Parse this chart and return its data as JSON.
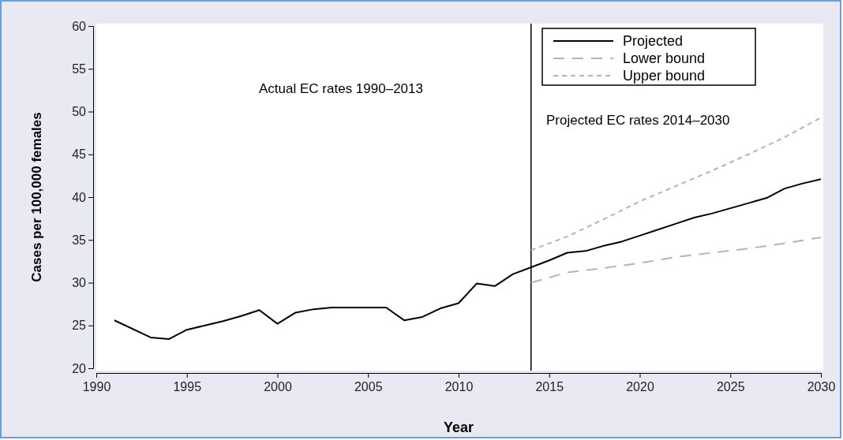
{
  "chart_data": {
    "type": "line",
    "xlabel": "Year",
    "ylabel": "Cases per 100,000 females",
    "xlim": [
      1990,
      2030
    ],
    "xticks": [
      1990,
      1995,
      2000,
      2005,
      2010,
      2015,
      2020,
      2025,
      2030
    ],
    "ylim": [
      20,
      60
    ],
    "yticks": [
      20,
      25,
      30,
      35,
      40,
      45,
      50,
      55,
      60
    ],
    "grid": false,
    "legend": "top right",
    "marker": "none",
    "ref_lines": [
      {
        "axis": "x",
        "value": 2014,
        "color": "#000000"
      }
    ],
    "annotations": [
      "Actual EC rates 1990–2013",
      "Projected EC rates 2014–2030"
    ],
    "series": [
      {
        "name": "Projected",
        "color": "#000000",
        "line_style": "solid",
        "x": [
          1991,
          1993,
          1994,
          1995,
          1996,
          1997,
          1998,
          1999,
          2000,
          2001,
          2002,
          2003,
          2004,
          2005,
          2006,
          2007,
          2008,
          2009,
          2010,
          2011,
          2012,
          2013,
          2014,
          2015,
          2016,
          2017,
          2018,
          2019,
          2020,
          2021,
          2022,
          2023,
          2024,
          2025,
          2026,
          2027,
          2028,
          2029,
          2030
        ],
        "values": [
          25.6,
          23.6,
          23.4,
          24.5,
          25.0,
          25.5,
          26.1,
          26.8,
          25.2,
          26.5,
          26.9,
          27.1,
          27.1,
          27.1,
          27.1,
          25.6,
          26.0,
          27.0,
          27.6,
          29.9,
          29.6,
          31.0,
          31.8,
          32.6,
          33.5,
          33.7,
          34.3,
          34.8,
          35.5,
          36.2,
          36.9,
          37.6,
          38.1,
          38.7,
          39.3,
          39.9,
          41.0,
          41.6,
          42.1
        ]
      },
      {
        "name": "Lower bound",
        "color": "#b4b4b4",
        "line_style": "dashed",
        "x": [
          2014,
          2016,
          2018,
          2020,
          2022,
          2024,
          2026,
          2028,
          2030
        ],
        "values": [
          30.0,
          31.2,
          31.7,
          32.3,
          33.0,
          33.5,
          34.0,
          34.6,
          35.3
        ]
      },
      {
        "name": "Upper bound",
        "color": "#b4b4b4",
        "line_style": "dotted",
        "x": [
          2014,
          2016,
          2018,
          2020,
          2022,
          2024,
          2026,
          2028,
          2030
        ],
        "values": [
          33.8,
          35.4,
          37.4,
          39.5,
          41.3,
          43.1,
          45.0,
          47.0,
          49.3
        ]
      }
    ]
  }
}
